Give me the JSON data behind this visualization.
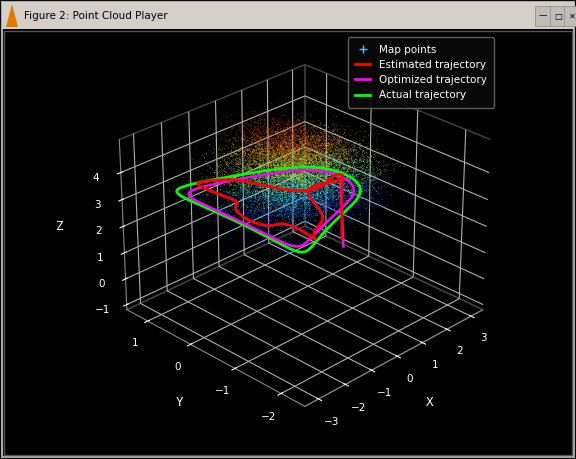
{
  "title": "Figure 2: Point Cloud Player",
  "background_color": "#000000",
  "axis_label_color": "#ffffff",
  "tick_color": "#ffffff",
  "grid_color": "#444444",
  "xlabel": "X",
  "ylabel": "Y",
  "zlabel": "Z",
  "xlim": [
    -3.5,
    3.5
  ],
  "ylim": [
    -2.5,
    1.5
  ],
  "zlim": [
    -1.2,
    5.2
  ],
  "xticks": [
    -3,
    -2,
    -1,
    0,
    1,
    2,
    3
  ],
  "yticks": [
    -2,
    -1,
    0,
    1
  ],
  "zticks": [
    -1,
    0,
    1,
    2,
    3,
    4
  ],
  "legend_labels": [
    "Map points",
    "Estimated trajectory",
    "Optimized trajectory",
    "Actual trajectory"
  ],
  "legend_colors": [
    "#4dc8ff",
    "#ff0000",
    "#ff00ff",
    "#00ff00"
  ],
  "point_cloud_seed": 42,
  "n_points": 12000,
  "elev": 28,
  "azim": -135
}
